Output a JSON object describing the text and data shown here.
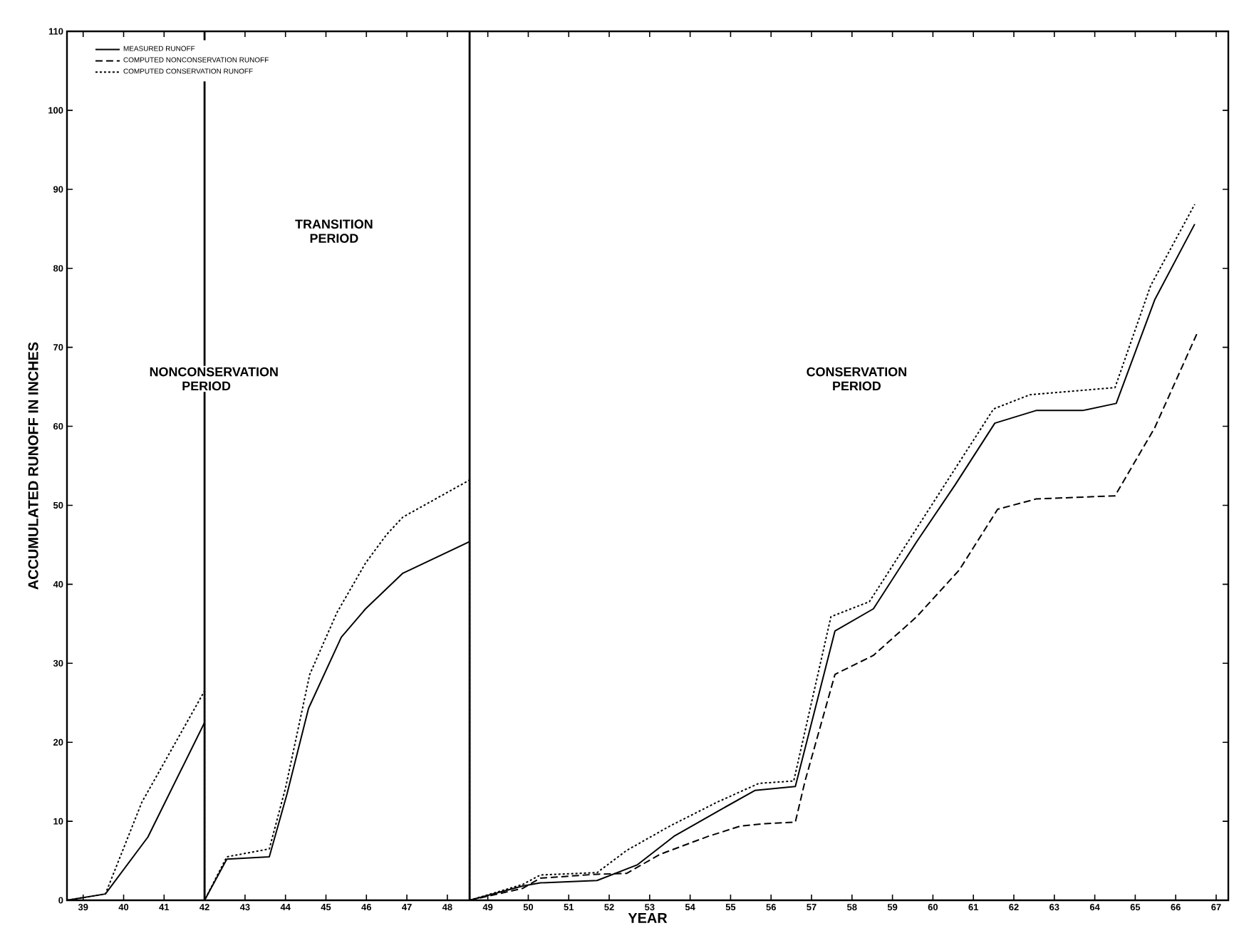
{
  "chart_data": {
    "type": "line",
    "xlabel": "YEAR",
    "ylabel": "ACCUMULATED RUNOFF IN INCHES",
    "xlim": [
      38.6,
      67.3
    ],
    "ylim": [
      0,
      110
    ],
    "xticks": [
      39,
      40,
      41,
      42,
      43,
      44,
      45,
      46,
      47,
      48,
      49,
      50,
      51,
      52,
      53,
      54,
      55,
      56,
      57,
      58,
      59,
      60,
      61,
      62,
      63,
      64,
      65,
      66,
      67
    ],
    "yticks": [
      0,
      10,
      20,
      30,
      40,
      50,
      60,
      70,
      80,
      90,
      100,
      110
    ],
    "grid": false,
    "legend": "top left",
    "marker": "none",
    "series": [
      {
        "name": "MEASURED RUNOFF",
        "color": "#000000",
        "line_style": "solid",
        "x": [
          38.6,
          39.55,
          40.6,
          42,
          42,
          42.55,
          43.6,
          44.04,
          44.57,
          45.38,
          45.98,
          46.9,
          48.55,
          48.55,
          49.86,
          50.3,
          51.7,
          52.7,
          53.6,
          54.66,
          55.6,
          56.6,
          57.58,
          58.53,
          59.6,
          60.55,
          61.53,
          62.55,
          63.7,
          64.53,
          65.48,
          66.47
        ],
        "values": [
          0,
          0.8,
          8,
          22.5,
          0,
          5.2,
          5.5,
          13.5,
          24.3,
          33.3,
          36.9,
          41.4,
          45.4,
          0,
          1.8,
          2.2,
          2.5,
          4.5,
          8.1,
          11.2,
          13.9,
          14.4,
          34.1,
          36.9,
          45.4,
          52.6,
          60.4,
          62,
          62,
          62.9,
          76,
          85.6
        ]
      },
      {
        "name": "COMPUTED NONCONSERVATION RUNOFF",
        "color": "#000000",
        "line_style": "dashed",
        "x": [
          48.55,
          49.86,
          50.3,
          51.7,
          52.43,
          53.25,
          54.45,
          55.25,
          55.85,
          56.6,
          56.84,
          57.58,
          58.53,
          59.6,
          60.65,
          61.6,
          62.55,
          64.5,
          65.48,
          66.54
        ],
        "values": [
          0,
          1.5,
          2.8,
          3.3,
          3.4,
          5.8,
          8.1,
          9.4,
          9.7,
          9.9,
          15.1,
          28.6,
          31,
          35.9,
          41.8,
          49.5,
          50.8,
          51.2,
          59.8,
          71.9
        ]
      },
      {
        "name": "COMPUTED CONSERVATION RUNOFF",
        "color": "#000000",
        "line_style": "dotted",
        "x": [
          38.6,
          39.55,
          40.45,
          42,
          42,
          42.55,
          43.6,
          44,
          44.6,
          45.27,
          45.98,
          46.5,
          46.9,
          48.55,
          48.55,
          49.86,
          50.3,
          51.7,
          52.43,
          53.5,
          54.66,
          55.7,
          56.56,
          57.48,
          58.43,
          61.5,
          62.4,
          64.5,
          65.38,
          66.47
        ],
        "values": [
          0,
          0.8,
          12.4,
          26.5,
          0,
          5.5,
          6.5,
          14.2,
          28.6,
          36.4,
          42.7,
          46.3,
          48.5,
          53.2,
          0,
          2,
          3.2,
          3.5,
          6.3,
          9.4,
          12.4,
          14.8,
          15.1,
          35.9,
          37.8,
          62.2,
          64,
          64.9,
          77.8,
          88.1
        ]
      }
    ],
    "ref_lines": [
      {
        "axis": "x",
        "value": 42,
        "color": "#000000"
      },
      {
        "axis": "x",
        "value": 48.55,
        "color": "#000000"
      }
    ],
    "annotations": [
      "NONCONSERVATION PERIOD",
      "TRANSITION PERIOD",
      "CONSERVATION PERIOD"
    ]
  }
}
